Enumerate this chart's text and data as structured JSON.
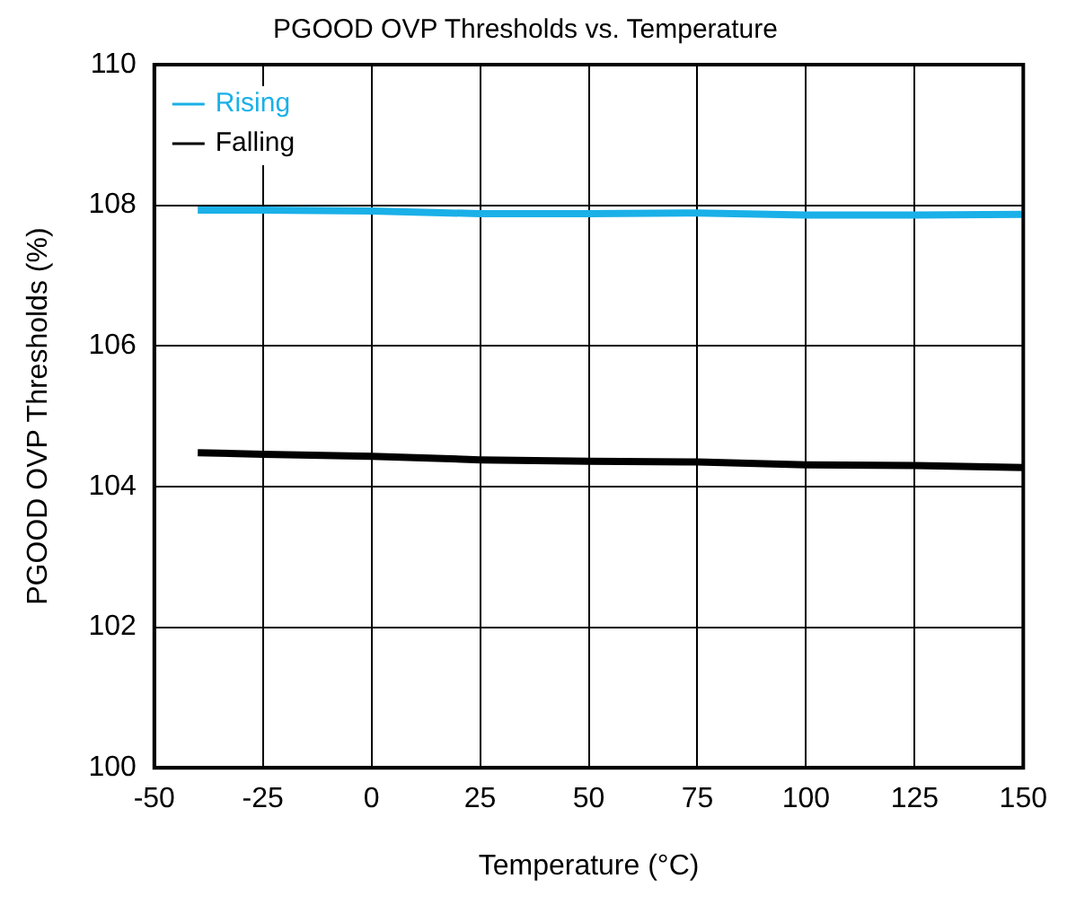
{
  "chart_data": {
    "type": "line",
    "title": "PGOOD OVP Thresholds vs. Temperature",
    "xlabel": "Temperature (°C)",
    "ylabel": "PGOOD OVP Thresholds (%)",
    "x": [
      -40,
      -25,
      0,
      25,
      50,
      75,
      100,
      125,
      150
    ],
    "series": [
      {
        "name": "Rising",
        "color": "#1ab0e8",
        "values": [
          107.93,
          107.93,
          107.92,
          107.88,
          107.88,
          107.89,
          107.86,
          107.86,
          107.87
        ]
      },
      {
        "name": "Falling",
        "color": "#000000",
        "values": [
          104.48,
          104.46,
          104.43,
          104.38,
          104.36,
          104.35,
          104.31,
          104.3,
          104.27
        ]
      }
    ],
    "xlim": [
      -50,
      150
    ],
    "xticks": [
      -50,
      -25,
      0,
      25,
      50,
      75,
      100,
      125,
      150
    ],
    "ylim": [
      100,
      110
    ],
    "yticks": [
      100,
      102,
      104,
      106,
      108,
      110
    ],
    "grid": true,
    "legend": "top left",
    "marker": "none",
    "line_style": "solid"
  }
}
